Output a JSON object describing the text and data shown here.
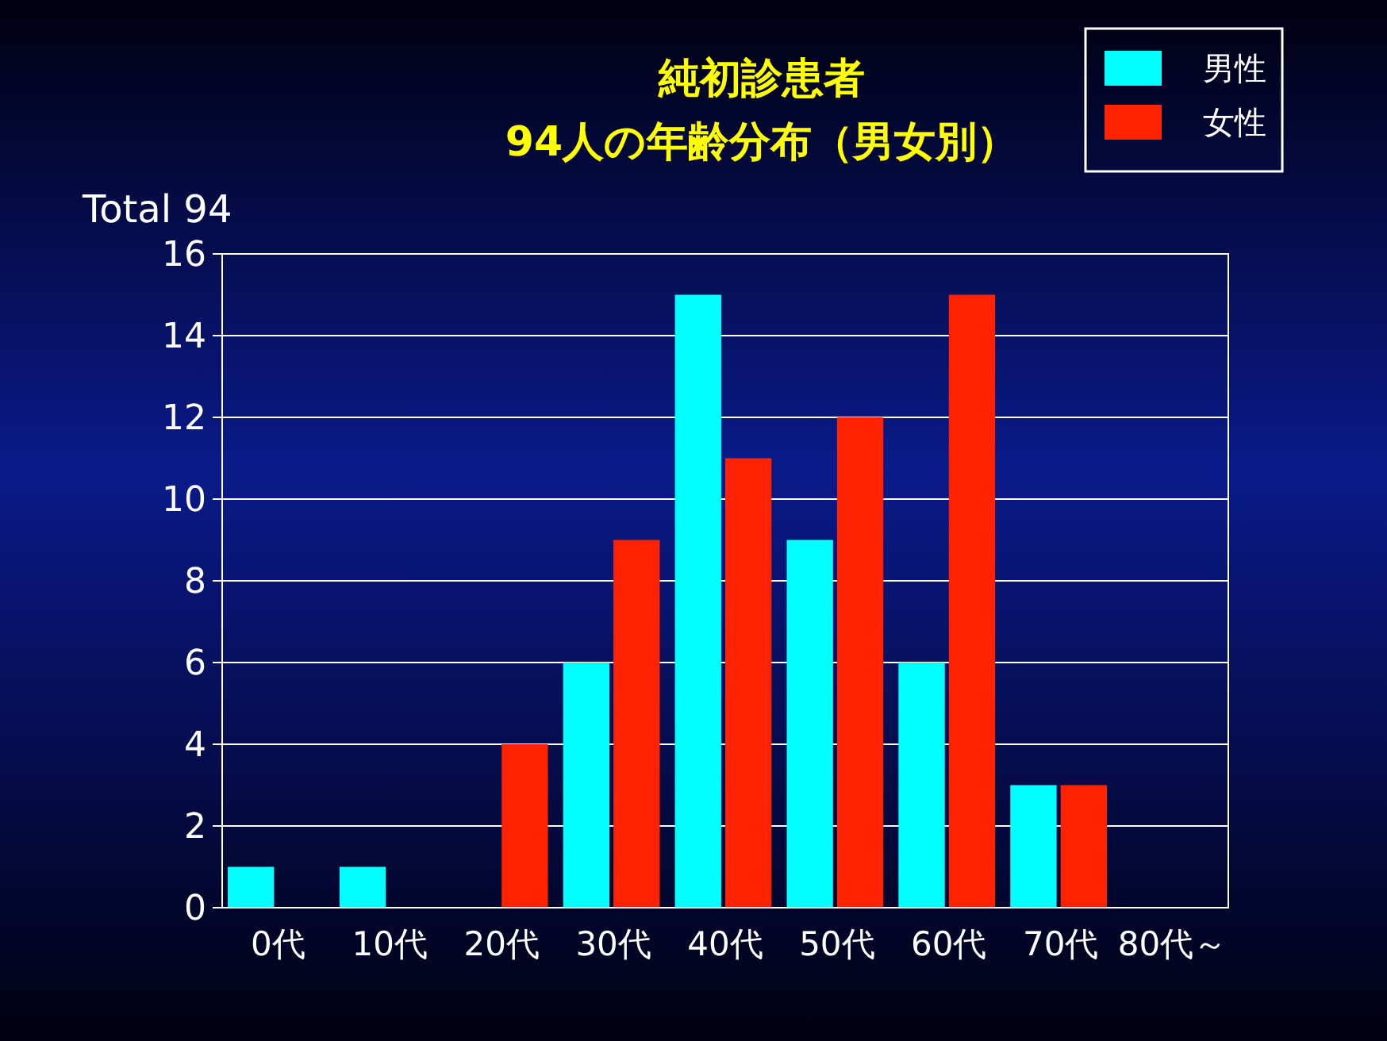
{
  "chart_data": {
    "type": "bar",
    "title": "純初診患者",
    "subtitle": "94人の年齢分布（男女別）",
    "annotations": [
      "Total 94"
    ],
    "categories": [
      "0代",
      "10代",
      "20代",
      "30代",
      "40代",
      "50代",
      "60代",
      "70代",
      "80代～"
    ],
    "series": [
      {
        "name": "男性",
        "color": "#00ffff",
        "values": [
          1,
          1,
          0,
          6,
          15,
          9,
          6,
          3,
          0
        ]
      },
      {
        "name": "女性",
        "color": "#ff2200",
        "values": [
          0,
          0,
          4,
          9,
          11,
          12,
          15,
          3,
          0
        ]
      }
    ],
    "ylim": [
      0,
      16
    ],
    "yticks": [
      0,
      2,
      4,
      6,
      8,
      10,
      12,
      14,
      16
    ],
    "grid": "y",
    "legend": "top right"
  }
}
